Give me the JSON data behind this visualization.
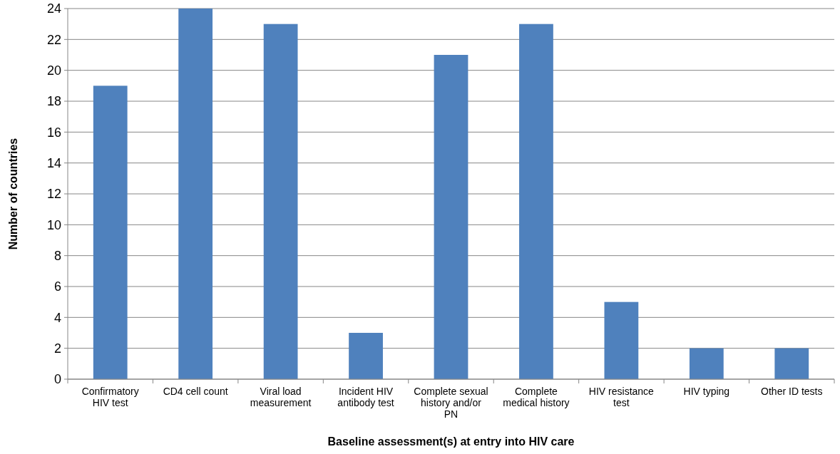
{
  "chart_data": {
    "type": "bar",
    "xlabel": "Baseline assessment(s) at entry into HIV care",
    "ylabel": "Number of countries",
    "categories": [
      "Confirmatory HIV test",
      "CD4 cell count",
      "Viral load measurement",
      "Incident HIV antibody test",
      "Complete sexual history and/or PN",
      "Complete medical history",
      "HIV resistance test",
      "HIV typing",
      "Other ID tests"
    ],
    "values": [
      19,
      24,
      23,
      3,
      21,
      23,
      5,
      2,
      2
    ],
    "color": "#4f81bd",
    "ylim": [
      0,
      24
    ],
    "yticks": [
      0,
      2,
      4,
      6,
      8,
      10,
      12,
      14,
      16,
      18,
      20,
      22,
      24
    ],
    "grid": "y"
  }
}
